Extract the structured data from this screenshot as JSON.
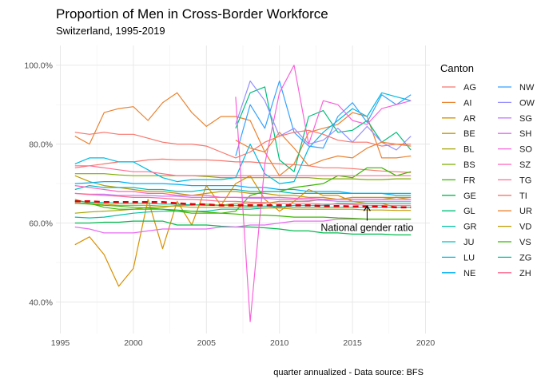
{
  "chart_data": {
    "type": "line",
    "title": "Proportion of Men in Cross-Border Workforce",
    "subtitle": "Switzerland, 1995-2019",
    "caption": "quarter annualized - Data source: BFS",
    "xlim": [
      1994.7,
      2020.3
    ],
    "ylim": [
      32,
      105
    ],
    "x_ticks": [
      1995,
      2000,
      2005,
      2010,
      2015,
      2020
    ],
    "x_tick_labels": [
      "1995",
      "2000",
      "2005",
      "2010",
      "2015",
      "2020"
    ],
    "y_ticks": [
      40,
      60,
      80,
      100
    ],
    "y_tick_labels": [
      "40.0%",
      "60.0%",
      "80.0%",
      "100.0%"
    ],
    "legend": {
      "title": "Canton",
      "position": "right"
    },
    "annotation": {
      "text": "National gender ratio",
      "x": 2016,
      "y": 60,
      "arrow_to": [
        2016,
        64.5
      ]
    },
    "x": [
      1996,
      1997,
      1998,
      1999,
      2000,
      2001,
      2002,
      2003,
      2004,
      2005,
      2006,
      2007,
      2008,
      2009,
      2010,
      2011,
      2012,
      2013,
      2014,
      2015,
      2016,
      2017,
      2018,
      2019
    ],
    "series": [
      {
        "name": "AG",
        "color": "#F8766D",
        "values": [
          74,
          74.5,
          75,
          75.5,
          75.5,
          76,
          76.2,
          76,
          76,
          76,
          75.8,
          75.5,
          75.5,
          75.2,
          75,
          74.8,
          74.5,
          74,
          74,
          73.8,
          73.5,
          73.2,
          73,
          72.8
        ]
      },
      {
        "name": "AI",
        "color": "#EA8331",
        "values": [
          82,
          80,
          88,
          89,
          89.5,
          86,
          90.5,
          93,
          88,
          84.5,
          87,
          87,
          86,
          78,
          72,
          75,
          83,
          84,
          85,
          88,
          87,
          76.5,
          76.5,
          77
        ]
      },
      {
        "name": "AR",
        "color": "#D89000",
        "values": [
          54.5,
          56.5,
          52,
          44,
          48.5,
          66,
          53.5,
          65.5,
          59.5,
          69.5,
          64.5,
          70,
          72,
          66,
          63,
          65.5,
          68.5,
          67,
          67,
          65.5,
          65,
          65,
          64,
          64
        ]
      },
      {
        "name": "BE",
        "color": "#C09B00",
        "values": [
          72,
          70.5,
          69.5,
          69,
          68.5,
          68,
          68,
          67.5,
          67,
          67.5,
          68,
          68,
          67.5,
          67.5,
          67,
          67,
          66.5,
          66.5,
          66,
          66.5,
          66.5,
          66.5,
          66.5,
          66
        ]
      },
      {
        "name": "BL",
        "color": "#A3A500",
        "values": [
          62.5,
          62.8,
          63,
          63.2,
          63.5,
          64,
          64,
          64.5,
          64.5,
          64.8,
          64.5,
          65,
          65,
          65,
          65.5,
          65.5,
          65.5,
          66,
          66,
          66,
          66,
          66,
          66.5,
          66.5
        ]
      },
      {
        "name": "BS",
        "color": "#7CAE00",
        "values": [
          72.5,
          72.5,
          72.5,
          72.2,
          72,
          72,
          72,
          72,
          72,
          71.8,
          71.5,
          71.5,
          71.5,
          71.5,
          71.5,
          71.5,
          71.5,
          71.2,
          71.2,
          71.2,
          71,
          71,
          71.2,
          71.2
        ]
      },
      {
        "name": "FR",
        "color": "#39B600",
        "values": [
          66,
          65,
          64,
          63.5,
          63.5,
          63.5,
          63.5,
          63,
          62.5,
          62.5,
          62.5,
          63,
          67,
          68,
          68,
          69,
          69.5,
          70,
          72,
          71.5,
          74,
          74,
          72,
          73
        ]
      },
      {
        "name": "GE",
        "color": "#00BB4E",
        "values": [
          60,
          60,
          60.2,
          60.2,
          60.5,
          60.5,
          60.5,
          59.5,
          59.5,
          59.5,
          59.2,
          59,
          59,
          58.8,
          58.5,
          58,
          58,
          57.5,
          57.5,
          57.2,
          57.2,
          57.2,
          57,
          57
        ]
      },
      {
        "name": "GL",
        "color": "#00BF7D",
        "values": [
          null,
          null,
          null,
          null,
          null,
          null,
          null,
          null,
          null,
          null,
          null,
          84,
          93,
          94.5,
          76,
          73,
          87,
          88.5,
          83,
          83.5,
          86,
          80.5,
          83,
          78.5
        ]
      },
      {
        "name": "GR",
        "color": "#00C1A3",
        "values": [
          61.5,
          61.3,
          61.5,
          62,
          62.5,
          62.8,
          63,
          63,
          63,
          63,
          63.5,
          63.5,
          63.5,
          63.8,
          64,
          64.5,
          64.5,
          64.5,
          65,
          65,
          65,
          65,
          65,
          65
        ]
      },
      {
        "name": "JU",
        "color": "#00BFC4",
        "values": [
          68.5,
          69.5,
          69,
          69,
          69,
          68.5,
          68.5,
          68,
          68,
          68.5,
          68.5,
          68.5,
          68,
          68,
          68,
          67.5,
          67.5,
          67.5,
          67.5,
          67.5,
          67.5,
          67.5,
          67.5,
          67.5
        ]
      },
      {
        "name": "LU",
        "color": "#00BAE0",
        "values": [
          75,
          76.5,
          76.5,
          75.5,
          75.5,
          73.5,
          71.5,
          70.5,
          71,
          71,
          71,
          71.5,
          80,
          72.5,
          70,
          70.5,
          79,
          83,
          86,
          89,
          87,
          93,
          92,
          91
        ]
      },
      {
        "name": "NE",
        "color": "#00B0F6",
        "values": [
          70,
          70.2,
          70.5,
          70.5,
          70,
          70,
          70,
          69.8,
          69.5,
          69.5,
          69.5,
          69.5,
          69,
          69,
          68.5,
          68.5,
          68,
          68,
          68,
          67.5,
          67.5,
          67.5,
          67,
          67
        ]
      },
      {
        "name": "NW",
        "color": "#35A2FF",
        "values": [
          null,
          null,
          null,
          null,
          null,
          null,
          null,
          null,
          null,
          null,
          null,
          77,
          90,
          84,
          96,
          83,
          79.5,
          79,
          87,
          90.5,
          85.5,
          92.5,
          90,
          92.5
        ]
      },
      {
        "name": "OW",
        "color": "#9590FF",
        "values": [
          null,
          null,
          null,
          null,
          null,
          null,
          null,
          null,
          null,
          null,
          null,
          85,
          96,
          91,
          82,
          84,
          80,
          81,
          84,
          80.5,
          84.5,
          80.5,
          78.5,
          82
        ]
      },
      {
        "name": "SG",
        "color": "#C77CFF",
        "values": [
          67.5,
          67.3,
          67.3,
          67,
          67,
          67,
          66.8,
          66.8,
          66.5,
          66.5,
          66.5,
          66.5,
          66.3,
          66.3,
          66,
          66,
          65.8,
          65.8,
          65.5,
          65.5,
          65.5,
          65.5,
          65.5,
          65.5
        ]
      },
      {
        "name": "SH",
        "color": "#E76BF3",
        "values": [
          59,
          58.5,
          57.5,
          57.5,
          57.5,
          58,
          58.5,
          58.5,
          58.5,
          58.5,
          59,
          59,
          59.5,
          59.5,
          60,
          60.5,
          60.5,
          60.5,
          61,
          61,
          61,
          61,
          61,
          61
        ]
      },
      {
        "name": "SO",
        "color": "#FA62DB",
        "values": [
          null,
          null,
          null,
          null,
          null,
          null,
          null,
          null,
          null,
          null,
          null,
          92,
          35,
          75,
          93,
          100,
          80,
          91,
          90,
          86,
          85,
          89,
          90,
          91
        ]
      },
      {
        "name": "SZ",
        "color": "#FF62BC",
        "values": [
          69.5,
          69,
          68.5,
          68,
          68,
          67.5,
          67.5,
          67,
          67,
          67,
          66.5,
          66.5,
          66.5,
          66.5,
          66.5,
          66.3,
          66.3,
          66,
          66,
          66,
          66,
          66,
          66,
          66
        ]
      },
      {
        "name": "TG",
        "color": "#FF6C91",
        "values": [
          74.5,
          74.5,
          74,
          73.5,
          73,
          73,
          72.5,
          72,
          72,
          72,
          72,
          72,
          72,
          72,
          72,
          72,
          72,
          72,
          72,
          72,
          72,
          72,
          72,
          72
        ]
      },
      {
        "name": "TI",
        "color": "#F8766D",
        "values": [
          83,
          82.5,
          83,
          82.5,
          82.5,
          81.5,
          80.5,
          80,
          80,
          79.5,
          78,
          76.5,
          78,
          80.5,
          82,
          83,
          83.5,
          82.5,
          81,
          80.5,
          80.5,
          79.5,
          80,
          80
        ]
      },
      {
        "name": "UR",
        "color": "#EA8331",
        "values": [
          null,
          null,
          null,
          null,
          null,
          null,
          null,
          null,
          null,
          null,
          null,
          81,
          79,
          78,
          83,
          79,
          74.5,
          76,
          77,
          76.5,
          79,
          80.5,
          80,
          79.5
        ]
      },
      {
        "name": "VD",
        "color": "#C09B00",
        "values": [
          65,
          65,
          64.8,
          64.5,
          64.5,
          64.5,
          64.3,
          64.3,
          64,
          64,
          64,
          64,
          64,
          63.8,
          63.8,
          63.5,
          63.5,
          63.5,
          63.5,
          63.5,
          63.3,
          63.3,
          63.2,
          63.2
        ]
      },
      {
        "name": "VS",
        "color": "#39B600",
        "values": [
          65,
          64.8,
          64.5,
          64.3,
          64,
          63.8,
          63.5,
          63.3,
          63,
          62.8,
          62.5,
          62.3,
          62,
          62,
          61.8,
          61.5,
          61.5,
          61.5,
          61.3,
          61.2,
          61,
          61,
          61,
          61
        ]
      },
      {
        "name": "ZG",
        "color": "#00C1A3",
        "values": [
          65.5,
          65.3,
          65.2,
          65,
          65,
          65,
          64.8,
          64.8,
          64.6,
          64.5,
          64.5,
          64.5,
          64.3,
          64.3,
          64.2,
          64,
          64,
          64,
          64,
          64,
          64,
          64,
          64,
          64
        ]
      },
      {
        "name": "ZH",
        "color": "#FF6C91",
        "values": [
          67.5,
          67.2,
          67,
          66.8,
          66.5,
          66.5,
          66.3,
          66,
          66,
          65.8,
          65.5,
          65.5,
          65.3,
          65.2,
          65,
          65,
          65,
          64.8,
          64.8,
          64.7,
          64.5,
          64.5,
          64.5,
          64.5
        ]
      }
    ],
    "national": {
      "color": "#E3000B",
      "values": [
        65.5,
        65.5,
        65.3,
        65.3,
        65.3,
        65.3,
        65.3,
        65,
        64.8,
        64.7,
        64.5,
        64.5,
        64.5,
        64.5,
        64.5,
        64.5,
        64.5,
        64.3,
        64.3,
        64.2,
        64.2,
        64.2,
        64,
        64
      ]
    }
  }
}
